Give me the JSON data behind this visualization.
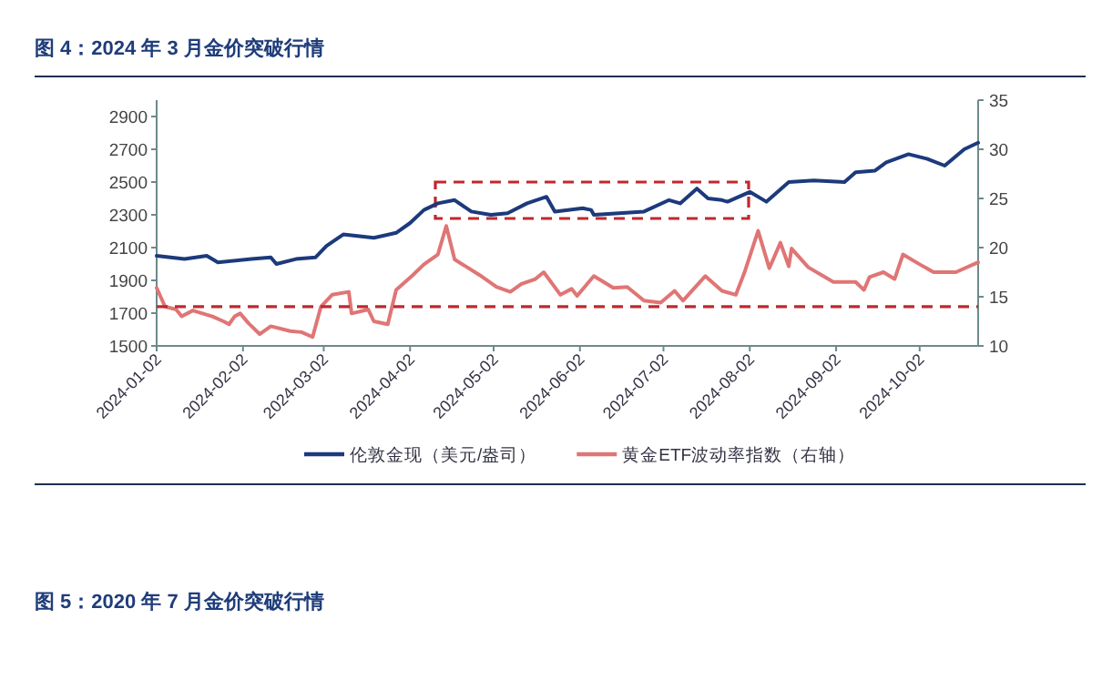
{
  "chart_data": {
    "type": "line",
    "title": "图 4：2024 年 3 月金价突破行情",
    "xlim": [
      "2024-01-02",
      "2024-10-23"
    ],
    "xticks": [
      "2024-01-02",
      "2024-02-02",
      "2024-03-02",
      "2024-04-02",
      "2024-05-02",
      "2024-06-02",
      "2024-07-02",
      "2024-08-02",
      "2024-09-02",
      "2024-10-02"
    ],
    "ylim": [
      1500,
      3000
    ],
    "yticks": [
      1500,
      1700,
      1900,
      2100,
      2300,
      2500,
      2700,
      2900
    ],
    "y2lim": [
      10,
      35
    ],
    "y2ticks": [
      10,
      15,
      20,
      25,
      30,
      35
    ],
    "legend": "bottom",
    "grid": false,
    "marker": "none",
    "line_style": "solid",
    "series": [
      {
        "name": "伦敦金现（美元/盎司）",
        "color": "#1c3a7c",
        "x": [
          "2024-01-02",
          "2024-01-12",
          "2024-01-20",
          "2024-01-24",
          "2024-02-05",
          "2024-02-12",
          "2024-02-14",
          "2024-02-21",
          "2024-02-28",
          "2024-03-03",
          "2024-03-09",
          "2024-03-20",
          "2024-03-28",
          "2024-04-02",
          "2024-04-07",
          "2024-04-12",
          "2024-04-18",
          "2024-04-24",
          "2024-05-01",
          "2024-05-07",
          "2024-05-14",
          "2024-05-21",
          "2024-05-24",
          "2024-06-03",
          "2024-06-06",
          "2024-06-07",
          "2024-06-25",
          "2024-07-04",
          "2024-07-08",
          "2024-07-14",
          "2024-07-18",
          "2024-07-23",
          "2024-07-25",
          "2024-08-02",
          "2024-08-08",
          "2024-08-16",
          "2024-08-25",
          "2024-09-05",
          "2024-09-09",
          "2024-09-16",
          "2024-09-20",
          "2024-09-28",
          "2024-10-05",
          "2024-10-11",
          "2024-10-18",
          "2024-10-23"
        ],
        "values": [
          2050,
          2030,
          2050,
          2010,
          2030,
          2040,
          2000,
          2030,
          2040,
          2110,
          2180,
          2160,
          2190,
          2250,
          2330,
          2370,
          2390,
          2320,
          2300,
          2310,
          2370,
          2410,
          2320,
          2340,
          2330,
          2300,
          2320,
          2390,
          2370,
          2460,
          2400,
          2390,
          2380,
          2440,
          2380,
          2500,
          2510,
          2500,
          2560,
          2570,
          2620,
          2670,
          2640,
          2600,
          2700,
          2740
        ]
      },
      {
        "name": "黄金ETF波动率指数（右轴）",
        "color": "#e07575",
        "axis": "y2",
        "x": [
          "2024-01-02",
          "2024-01-05",
          "2024-01-09",
          "2024-01-11",
          "2024-01-15",
          "2024-01-22",
          "2024-01-26",
          "2024-01-28",
          "2024-01-30",
          "2024-02-01",
          "2024-02-04",
          "2024-02-08",
          "2024-02-12",
          "2024-02-19",
          "2024-02-23",
          "2024-02-27",
          "2024-03-01",
          "2024-03-05",
          "2024-03-11",
          "2024-03-12",
          "2024-03-18",
          "2024-03-20",
          "2024-03-25",
          "2024-03-28",
          "2024-04-03",
          "2024-04-07",
          "2024-04-12",
          "2024-04-15",
          "2024-04-18",
          "2024-04-27",
          "2024-05-03",
          "2024-05-08",
          "2024-05-12",
          "2024-05-17",
          "2024-05-20",
          "2024-05-26",
          "2024-05-30",
          "2024-06-01",
          "2024-06-07",
          "2024-06-14",
          "2024-06-19",
          "2024-06-25",
          "2024-07-01",
          "2024-07-06",
          "2024-07-09",
          "2024-07-17",
          "2024-07-23",
          "2024-07-28",
          "2024-07-31",
          "2024-08-05",
          "2024-08-09",
          "2024-08-13",
          "2024-08-16",
          "2024-08-17",
          "2024-08-23",
          "2024-09-01",
          "2024-09-09",
          "2024-09-12",
          "2024-09-14",
          "2024-09-19",
          "2024-09-23",
          "2024-09-26",
          "2024-10-02",
          "2024-10-07",
          "2024-10-15",
          "2024-10-23"
        ],
        "values": [
          15.9,
          14.0,
          13.7,
          13.0,
          13.6,
          13.0,
          12.5,
          12.2,
          13.0,
          13.3,
          12.3,
          11.2,
          12.0,
          11.5,
          11.4,
          10.9,
          14.0,
          15.2,
          15.5,
          13.3,
          13.7,
          12.5,
          12.2,
          15.7,
          17.2,
          18.3,
          19.3,
          22.2,
          18.8,
          17.2,
          16.0,
          15.5,
          16.3,
          16.8,
          17.5,
          15.2,
          15.8,
          15.1,
          17.1,
          15.9,
          16.0,
          14.6,
          14.4,
          15.6,
          14.6,
          17.1,
          15.6,
          15.2,
          17.4,
          21.7,
          17.9,
          20.5,
          18.1,
          19.9,
          18.0,
          16.5,
          16.5,
          15.7,
          17.0,
          17.5,
          16.8,
          19.3,
          18.3,
          17.5,
          17.5,
          18.5
        ]
      }
    ],
    "ref_lines": [
      {
        "axis": "y2",
        "value": 14,
        "color": "#c0282d",
        "line_style": "dashed"
      }
    ],
    "annotations": [
      "图 5：2020 年 7 月金价突破行情"
    ]
  }
}
